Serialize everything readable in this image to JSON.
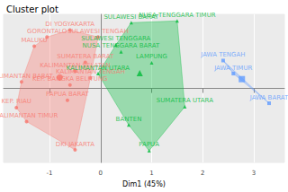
{
  "chart_data": {
    "type": "scatter",
    "title": "Cluster plot",
    "x_label": "Dim1 (45%)",
    "xlim": [
      -1.9,
      3.6
    ],
    "xticks": [
      -1,
      0,
      1,
      2,
      3
    ],
    "ylim": [
      -1.7,
      1.7
    ],
    "yticks": [],
    "tick_labels": "x",
    "grid": true,
    "series": [
      {
        "color": "#F8766D",
        "marker": "circle",
        "labels": [
          "DI YOGYAKARTA",
          "GORONTALO",
          "SULAWESI TENGAH",
          "MALUKU",
          "SUMATERA BARAT",
          "KALIMANTAN SELATAN",
          "KALIMANTAN BARAT",
          "KEP. BANGKA BELITUNG",
          "KALIMANTAN TENGAH",
          "PAPUA BARAT",
          "KEP. RIAU",
          "KALIMANTAN TIMUR",
          "DKI JAKARTA"
        ],
        "x": [
          -0.6,
          -1.05,
          -0.05,
          -1.3,
          -0.3,
          -0.5,
          -1.55,
          -0.6,
          -0.2,
          -0.65,
          -1.65,
          -1.45,
          -0.5
        ],
        "y": [
          1.34,
          1.18,
          1.18,
          0.97,
          0.6,
          0.4,
          0.15,
          0.08,
          0.24,
          -0.27,
          -0.44,
          -0.76,
          -1.41
        ]
      },
      {
        "color": "#00BA38",
        "marker": "triangle",
        "labels": [
          "SULAWESI BARAT",
          "NUSA TENGGARA TIMUR",
          "SULAWESI TENGGARA",
          "NUSA TENGGARA BARAT",
          "LAMPUNG",
          "KALIMANTAN UTARA",
          "SUMATERA UTARA",
          "BANTEN",
          "PAPUA"
        ],
        "x": [
          0.6,
          1.5,
          0.3,
          0.4,
          1.0,
          -0.05,
          1.65,
          0.55,
          0.95
        ],
        "y": [
          1.51,
          1.55,
          1.0,
          0.84,
          0.59,
          0.34,
          -0.42,
          -0.84,
          -1.43
        ]
      },
      {
        "color": "#619CFF",
        "marker": "rect",
        "labels": [
          "JAWA TENGAH",
          "JAWA TIMUR",
          "JAWA BARAT"
        ],
        "x": [
          2.4,
          2.6,
          3.3
        ],
        "y": [
          0.64,
          0.34,
          -0.34
        ]
      }
    ]
  }
}
